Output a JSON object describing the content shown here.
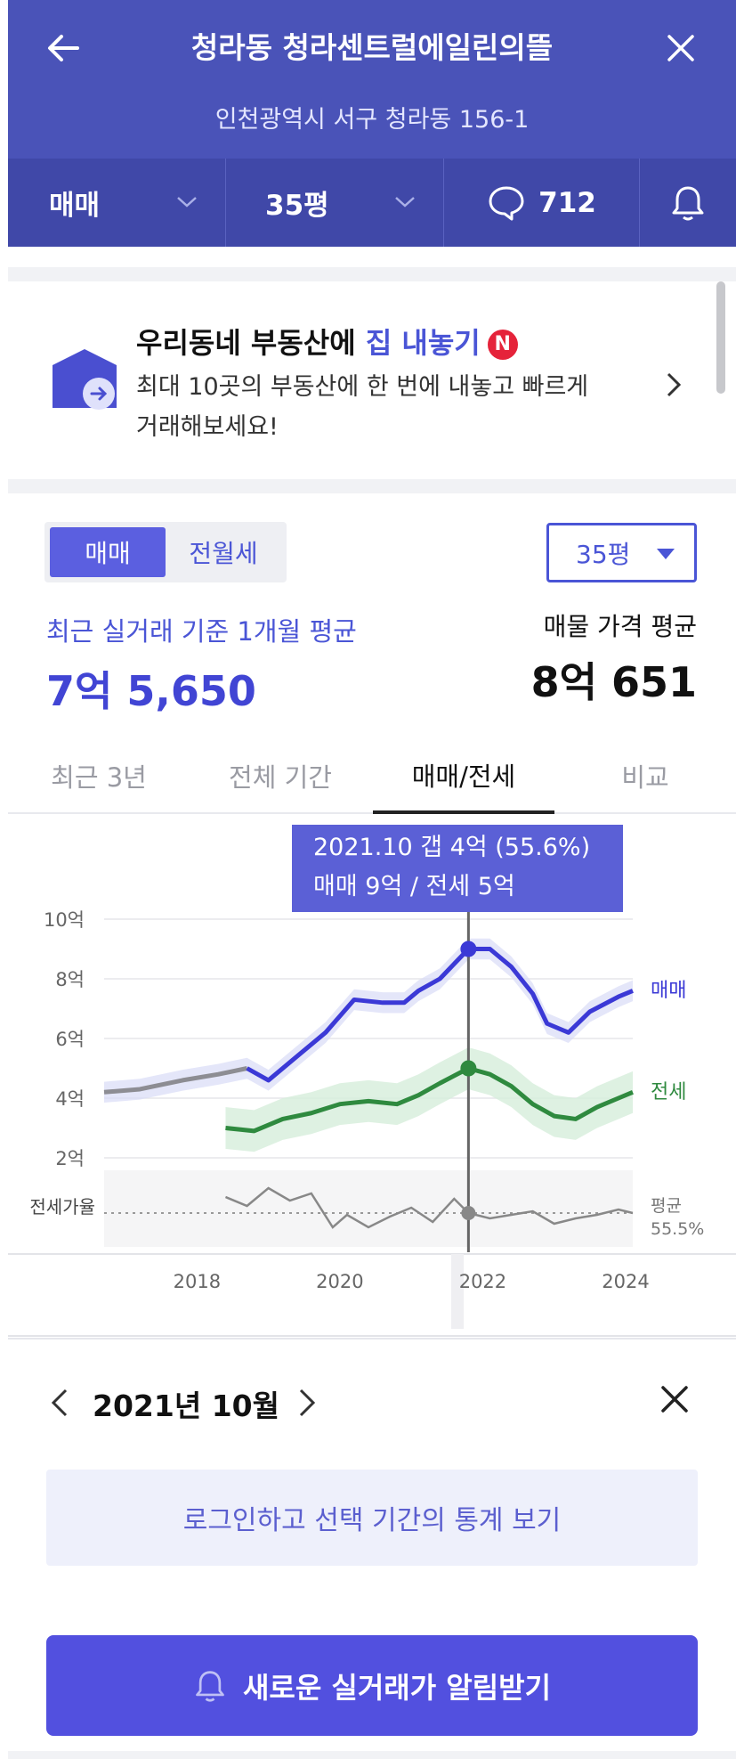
{
  "header": {
    "title": "청라동 청라센트럴에일린의뜰",
    "address": "인천광역시 서구 청라동 156-1",
    "trade_type": "매매",
    "size": "35평",
    "comment_count": "712"
  },
  "banner": {
    "title_prefix": "우리동네 부동산에 ",
    "title_highlight": "집 내놓기",
    "badge": "N",
    "description": "최대 10곳의 부동산에 한 번에 내놓고 빠르게 거래해보세요!"
  },
  "trade": {
    "segments": [
      "매매",
      "전월세"
    ],
    "active_segment": 0,
    "size_select": "35평",
    "avg_label": "최근 실거래 기준 1개월 평균",
    "avg_value": "7억 5,650",
    "listing_label": "매물 가격 평균",
    "listing_value": "8억 651"
  },
  "tabs": [
    {
      "label": "최근 3년",
      "active": false
    },
    {
      "label": "전체 기간",
      "active": false
    },
    {
      "label": "매매/전세",
      "active": true
    },
    {
      "label": "비교",
      "active": false
    }
  ],
  "tooltip": {
    "line1": "2021.10  갭 4억 (55.6%)",
    "line2": "매매 9억 / 전세 5억"
  },
  "colors": {
    "header_bg": "#4a53b8",
    "sale": "#3b39d6",
    "jeonse": "#2f8a3f",
    "ratio": "#888888",
    "accent": "#5250df"
  },
  "chart_data": {
    "type": "line",
    "x_ticks": [
      "2018",
      "2020",
      "2022",
      "2024"
    ],
    "y_ticks": [
      "10억",
      "8억",
      "6억",
      "4억",
      "2억"
    ],
    "ylim": [
      0,
      10
    ],
    "ratio_label": "전세가율",
    "ratio_avg_label": "평균",
    "ratio_avg_value": "55.5%",
    "selected": {
      "x": 2021.8,
      "sale": 9,
      "jeonse": 5
    },
    "series": [
      {
        "name": "매매",
        "x": [
          2016.7,
          2017.2,
          2017.8,
          2018.3,
          2018.7,
          2019.0,
          2019.4,
          2019.8,
          2020.2,
          2020.6,
          2020.9,
          2021.1,
          2021.4,
          2021.8,
          2022.1,
          2022.4,
          2022.7,
          2022.9,
          2023.2,
          2023.5,
          2023.9,
          2024.1
        ],
        "y": [
          4.2,
          4.3,
          4.6,
          4.8,
          5.0,
          4.6,
          5.4,
          6.2,
          7.3,
          7.2,
          7.2,
          7.6,
          8.0,
          9.0,
          9.0,
          8.4,
          7.5,
          6.5,
          6.2,
          6.9,
          7.4,
          7.6
        ]
      },
      {
        "name": "전세",
        "x": [
          2018.4,
          2018.8,
          2019.2,
          2019.6,
          2020.0,
          2020.4,
          2020.8,
          2021.1,
          2021.4,
          2021.8,
          2022.1,
          2022.4,
          2022.7,
          2023.0,
          2023.3,
          2023.6,
          2023.9,
          2024.1
        ],
        "y": [
          3.0,
          2.9,
          3.3,
          3.5,
          3.8,
          3.9,
          3.8,
          4.1,
          4.5,
          5.0,
          4.8,
          4.4,
          3.8,
          3.4,
          3.3,
          3.7,
          4.0,
          4.2
        ]
      }
    ]
  },
  "month": {
    "label": "2021년 10월"
  },
  "login_prompt": "로그인하고 선택 기간의 통계 보기",
  "alert_button": "새로운 실거래가 알림받기"
}
